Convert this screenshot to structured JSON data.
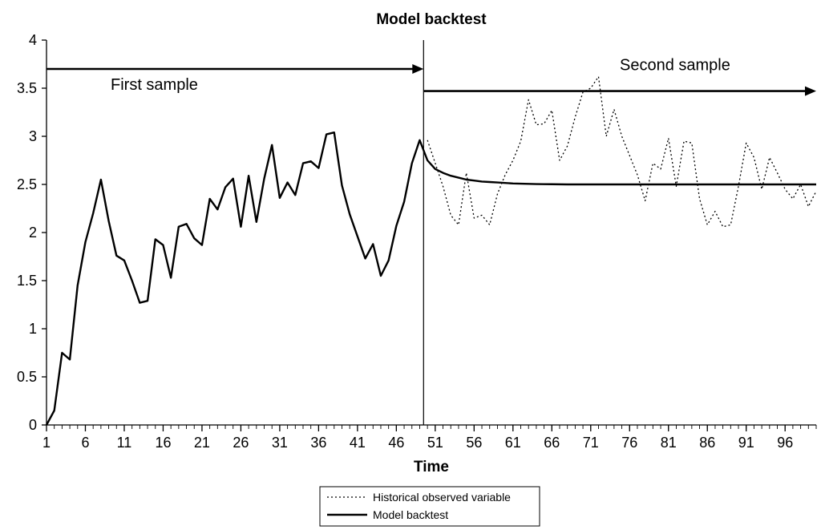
{
  "chart_data": {
    "type": "line",
    "title": "Model backtest",
    "xlabel": "Time",
    "ylabel": "",
    "xlim": [
      1,
      100
    ],
    "ylim": [
      0,
      4
    ],
    "x_ticks": [
      1,
      6,
      11,
      16,
      21,
      26,
      31,
      36,
      41,
      46,
      51,
      56,
      61,
      66,
      71,
      76,
      81,
      86,
      91,
      96
    ],
    "y_ticks": [
      0,
      0.5,
      1,
      1.5,
      2,
      2.5,
      3,
      3.5,
      4
    ],
    "y_tick_labels": [
      "0",
      "0.5",
      "1",
      "1.5",
      "2",
      "2.5",
      "3",
      "3.5",
      "4"
    ],
    "grid": false,
    "legend_position": "bottom-center",
    "split_time": 49.5,
    "series": [
      {
        "name": "Historical observed variable",
        "style": "dotted",
        "x_start": 50,
        "values": [
          2.96,
          2.72,
          2.48,
          2.18,
          2.08,
          2.62,
          2.15,
          2.18,
          2.08,
          2.4,
          2.6,
          2.75,
          2.95,
          3.38,
          3.12,
          3.13,
          3.27,
          2.75,
          2.9,
          3.2,
          3.46,
          3.5,
          3.62,
          3.0,
          3.28,
          3.0,
          2.8,
          2.6,
          2.33,
          2.72,
          2.66,
          2.98,
          2.48,
          2.95,
          2.93,
          2.35,
          2.08,
          2.22,
          2.06,
          2.08,
          2.48,
          2.93,
          2.78,
          2.45,
          2.78,
          2.62,
          2.45,
          2.35,
          2.5,
          2.27,
          2.43
        ]
      },
      {
        "name": "Model backtest",
        "style": "solid",
        "x_start": 1,
        "values": [
          0.0,
          0.15,
          0.75,
          0.68,
          1.45,
          1.9,
          2.2,
          2.55,
          2.12,
          1.76,
          1.71,
          1.5,
          1.27,
          1.29,
          1.93,
          1.87,
          1.53,
          2.06,
          2.09,
          1.94,
          1.87,
          2.35,
          2.24,
          2.47,
          2.56,
          2.06,
          2.59,
          2.11,
          2.56,
          2.91,
          2.36,
          2.52,
          2.39,
          2.72,
          2.74,
          2.67,
          3.02,
          3.04,
          2.49,
          2.19,
          1.96,
          1.73,
          1.88,
          1.55,
          1.71,
          2.07,
          2.32,
          2.72,
          2.96,
          2.75,
          2.66,
          2.62,
          2.59,
          2.57,
          2.55,
          2.54,
          2.53,
          2.525,
          2.52,
          2.515,
          2.51,
          2.508,
          2.506,
          2.504,
          2.503,
          2.502,
          2.501,
          2.5,
          2.5,
          2.5,
          2.5,
          2.5,
          2.5,
          2.5,
          2.5,
          2.5,
          2.5,
          2.5,
          2.5,
          2.5,
          2.5,
          2.5,
          2.5,
          2.5,
          2.5,
          2.5,
          2.5,
          2.5,
          2.5,
          2.5,
          2.5,
          2.5,
          2.5,
          2.5,
          2.5,
          2.5,
          2.5,
          2.5,
          2.5,
          2.5
        ]
      }
    ],
    "annotations": [
      {
        "id": "first",
        "text": "First sample",
        "arrow_y": 3.7,
        "arrow_from": 1,
        "arrow_to": 49.5,
        "arrow_direction": "right"
      },
      {
        "id": "second",
        "text": "Second sample",
        "arrow_y": 3.47,
        "arrow_from": 49.5,
        "arrow_to": 100,
        "arrow_direction": "right"
      }
    ]
  }
}
